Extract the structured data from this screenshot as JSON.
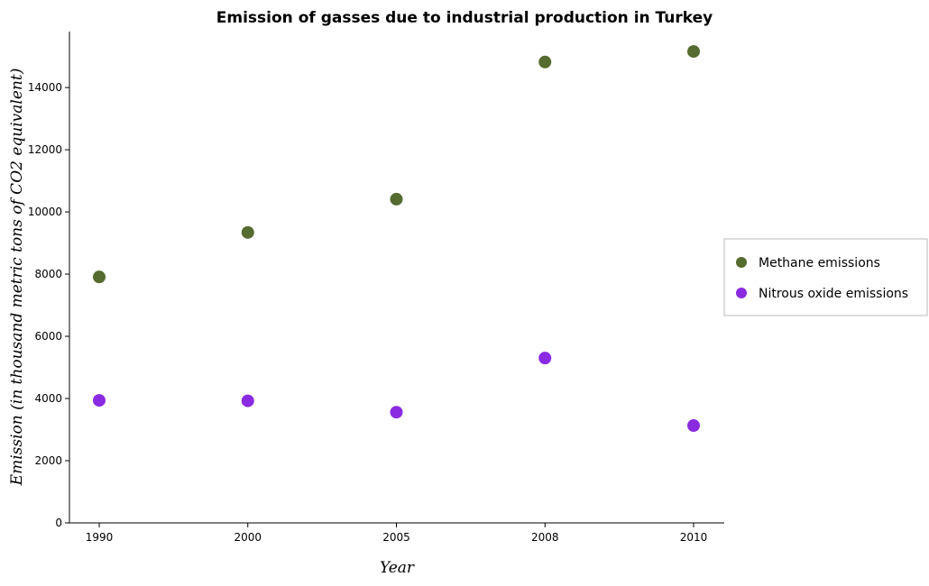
{
  "chart_data": {
    "type": "scatter",
    "title": "Emission of gasses due to industrial production in Turkey",
    "xlabel": "Year",
    "ylabel": "Emission (in thousand metric tons of CO2 equivalent)",
    "categories": [
      "1990",
      "2000",
      "2005",
      "2008",
      "2010"
    ],
    "ylim": [
      0,
      15800
    ],
    "yticks": [
      0,
      2000,
      4000,
      6000,
      8000,
      10000,
      12000,
      14000
    ],
    "grid": false,
    "legend_position": "right",
    "series": [
      {
        "name": "Methane emissions",
        "color": "#556b2f",
        "values": [
          7910,
          9340,
          10410,
          14820,
          15160
        ]
      },
      {
        "name": "Nitrous oxide emissions",
        "color": "#8a2be2",
        "values": [
          3940,
          3925,
          3560,
          5300,
          3130
        ]
      }
    ]
  }
}
